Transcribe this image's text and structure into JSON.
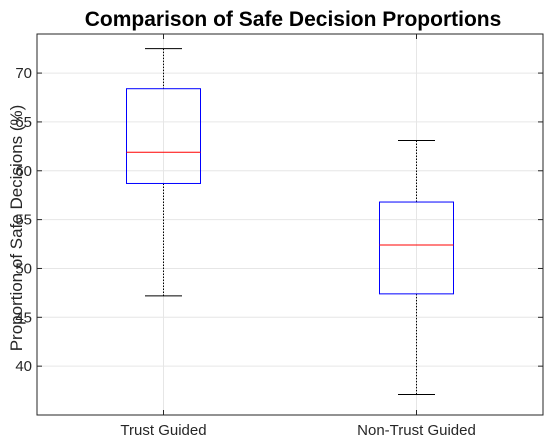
{
  "chart_data": {
    "type": "box",
    "title": "Comparison of Safe Decision Proportions",
    "xlabel": "",
    "ylabel": "Proportion of Safe Decisions (%)",
    "categories": [
      "Trust Guided",
      "Non-Trust Guided"
    ],
    "boxes": [
      {
        "category": "Trust Guided",
        "whisker_low": 47.2,
        "q1": 58.7,
        "median": 61.9,
        "q3": 68.4,
        "whisker_high": 72.5
      },
      {
        "category": "Non-Trust Guided",
        "whisker_low": 37.1,
        "q1": 47.4,
        "median": 52.4,
        "q3": 56.8,
        "whisker_high": 63.1
      }
    ],
    "yticks": [
      40,
      45,
      50,
      55,
      60,
      65,
      70
    ],
    "ytick_labels": [
      "40",
      "45",
      "50",
      "55",
      "60",
      "65",
      "70"
    ],
    "ylim": [
      35,
      74
    ],
    "grid": true,
    "colors": {
      "box": "#0000ff",
      "median": "#ff0000",
      "whisker": "#000000",
      "grid": "#e6e6e6",
      "axes": "#262626"
    }
  }
}
